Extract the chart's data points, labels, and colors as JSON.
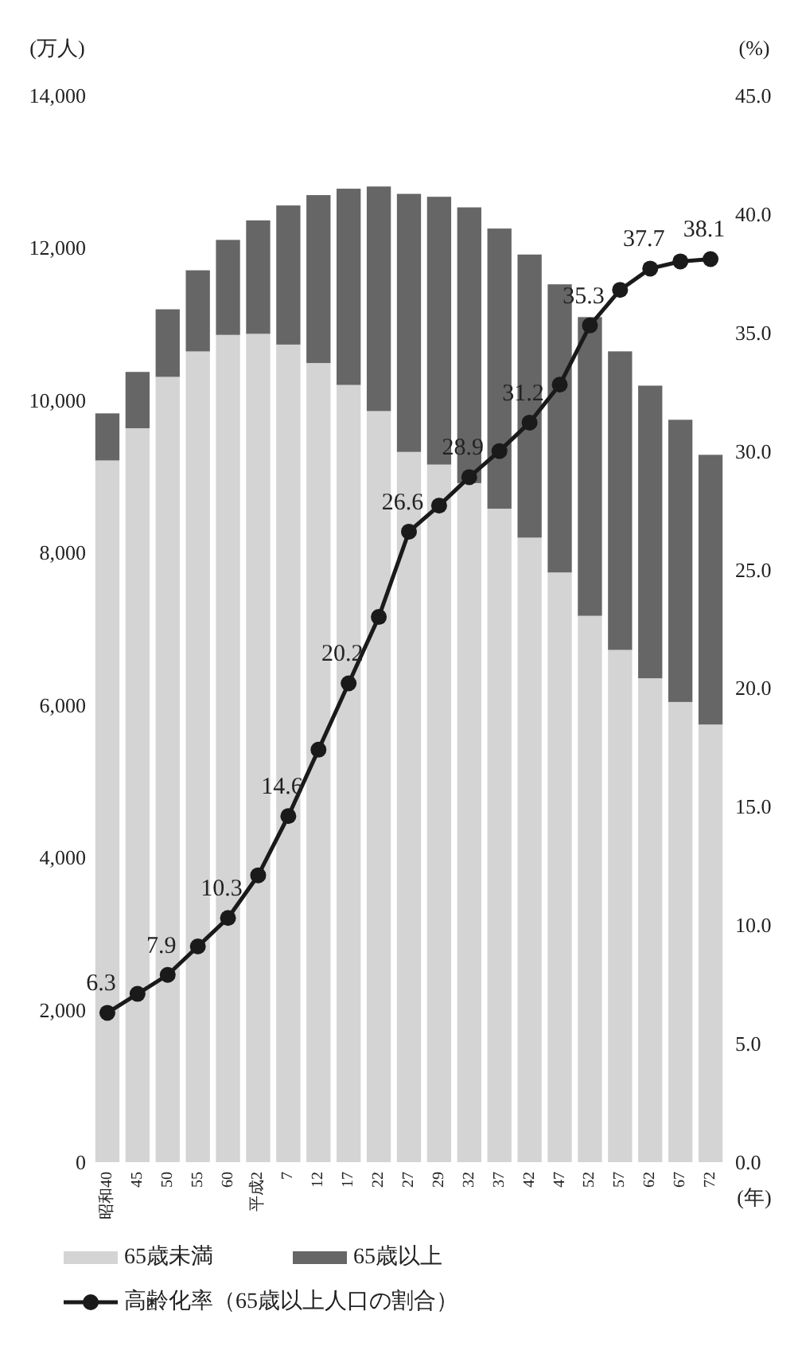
{
  "chart_data": {
    "type": "bar",
    "stacked": true,
    "xlabel": "(年)",
    "ylabel": "(万人)",
    "y2label": "(%)",
    "legend": "bottom",
    "marker": "circle",
    "categories": [
      "昭和40",
      "45",
      "50",
      "55",
      "60",
      "平成2",
      "7",
      "12",
      "17",
      "22",
      "27",
      "29",
      "32",
      "37",
      "42",
      "47",
      "52",
      "57",
      "62",
      "67",
      "72"
    ],
    "ylim": [
      0,
      14000
    ],
    "yticks": [
      0,
      {
        "value": 2000,
        "label": "2,000"
      },
      {
        "value": 4000,
        "label": "4,000"
      },
      {
        "value": 6000,
        "label": "6,000"
      },
      {
        "value": 8000,
        "label": "8,000"
      },
      {
        "value": 10000,
        "label": "10,000"
      },
      {
        "value": 12000,
        "label": "12,000"
      },
      {
        "value": 14000,
        "label": "14,000"
      }
    ],
    "y2lim": [
      0,
      45
    ],
    "y2ticks": [
      {
        "value": 0,
        "label": "0.0"
      },
      {
        "value": 5,
        "label": "5.0"
      },
      {
        "value": 10,
        "label": "10.0"
      },
      {
        "value": 15,
        "label": "15.0"
      },
      {
        "value": 20,
        "label": "20.0"
      },
      {
        "value": 25,
        "label": "25.0"
      },
      {
        "value": 30,
        "label": "30.0"
      },
      {
        "value": 35,
        "label": "35.0"
      },
      {
        "value": 40,
        "label": "40.0"
      },
      {
        "value": 45,
        "label": "45.0"
      }
    ],
    "series": [
      {
        "name": "65歳未満",
        "color": "#d4d4d4",
        "values": [
          9210,
          9633,
          10307,
          10641,
          10858,
          10872,
          10731,
          10489,
          10201,
          9858,
          9322,
          9156,
          8913,
          8577,
          8197,
          7740,
          7171,
          6723,
          6351,
          6040,
          5744
        ]
      },
      {
        "name": "65歳以上",
        "color": "#666666",
        "values": [
          618,
          739,
          887,
          1065,
          1247,
          1489,
          1826,
          2204,
          2576,
          2948,
          3387,
          3515,
          3619,
          3677,
          3716,
          3782,
          3921,
          3919,
          3841,
          3704,
          3540
        ]
      },
      {
        "name": "高齢化率（65歳以上人口の割合）",
        "type": "line",
        "axis": "y2",
        "color": "#1a1a1a",
        "values": [
          6.3,
          7.1,
          7.9,
          9.1,
          10.3,
          12.1,
          14.6,
          17.4,
          20.2,
          23.0,
          26.6,
          27.7,
          28.9,
          30.0,
          31.2,
          32.8,
          35.3,
          36.8,
          37.7,
          38.0,
          38.1
        ],
        "value_labels": [
          "6.3",
          null,
          "7.9",
          null,
          "10.3",
          null,
          "14.6",
          null,
          "20.2",
          null,
          "26.6",
          null,
          "28.9",
          null,
          "31.2",
          null,
          "35.3",
          null,
          "37.7",
          null,
          "38.1"
        ]
      }
    ]
  }
}
